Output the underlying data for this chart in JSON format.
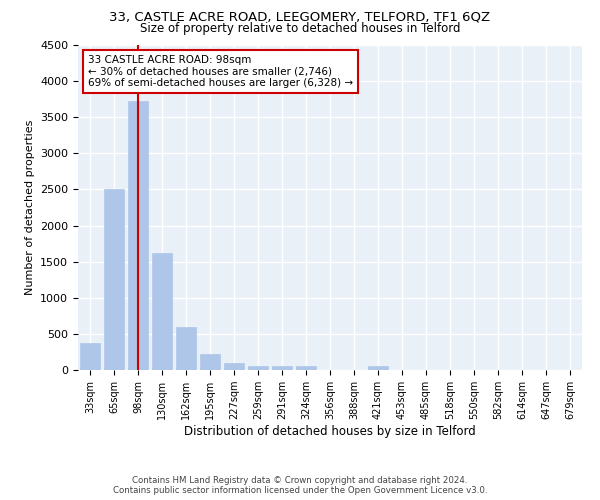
{
  "title_line1": "33, CASTLE ACRE ROAD, LEEGOMERY, TELFORD, TF1 6QZ",
  "title_line2": "Size of property relative to detached houses in Telford",
  "xlabel": "Distribution of detached houses by size in Telford",
  "ylabel": "Number of detached properties",
  "categories": [
    "33sqm",
    "65sqm",
    "98sqm",
    "130sqm",
    "162sqm",
    "195sqm",
    "227sqm",
    "259sqm",
    "291sqm",
    "324sqm",
    "356sqm",
    "388sqm",
    "421sqm",
    "453sqm",
    "485sqm",
    "518sqm",
    "550sqm",
    "582sqm",
    "614sqm",
    "647sqm",
    "679sqm"
  ],
  "values": [
    375,
    2500,
    3725,
    1625,
    600,
    225,
    100,
    55,
    55,
    50,
    0,
    0,
    50,
    0,
    0,
    0,
    0,
    0,
    0,
    0,
    0
  ],
  "bar_color": "#aec6e8",
  "highlight_bar_index": 2,
  "highlight_line_color": "#cc0000",
  "ylim": [
    0,
    4500
  ],
  "yticks": [
    0,
    500,
    1000,
    1500,
    2000,
    2500,
    3000,
    3500,
    4000,
    4500
  ],
  "annotation_text": "33 CASTLE ACRE ROAD: 98sqm\n← 30% of detached houses are smaller (2,746)\n69% of semi-detached houses are larger (6,328) →",
  "annotation_box_color": "#cc0000",
  "background_color": "#eaf0f8",
  "grid_color": "#ffffff",
  "footer_line1": "Contains HM Land Registry data © Crown copyright and database right 2024.",
  "footer_line2": "Contains public sector information licensed under the Open Government Licence v3.0."
}
